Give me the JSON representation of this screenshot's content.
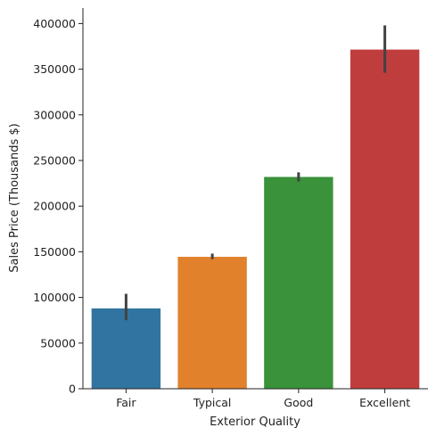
{
  "chart_data": {
    "type": "bar",
    "title": "",
    "xlabel": "Exterior Quality",
    "ylabel": "Sales Price (Thousands $)",
    "categories": [
      "Fair",
      "Typical",
      "Good",
      "Excellent"
    ],
    "values": [
      88000,
      144500,
      232000,
      371500
    ],
    "error_low": [
      75000,
      142000,
      227000,
      346000
    ],
    "error_high": [
      104000,
      148000,
      237000,
      398000
    ],
    "colors": [
      "#3274a1",
      "#e1812c",
      "#3a923a",
      "#c03d3e"
    ],
    "ylim": [
      0,
      417000
    ],
    "yticks": [
      0,
      50000,
      100000,
      150000,
      200000,
      250000,
      300000,
      350000,
      400000
    ],
    "grid": false,
    "legend": "none"
  }
}
